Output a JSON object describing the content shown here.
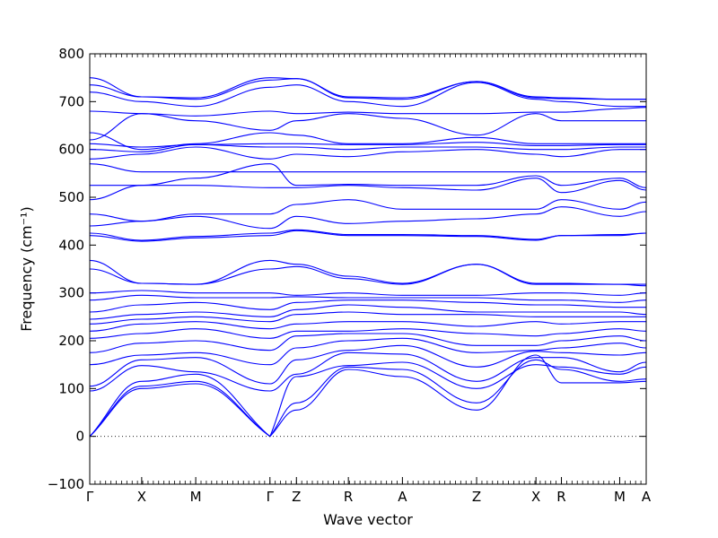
{
  "chart_data": {
    "type": "line",
    "title": "",
    "xlabel": "Wave vector",
    "ylabel": "Frequency (cm⁻¹)",
    "ylim": [
      -100,
      800
    ],
    "yticks": [
      -100,
      0,
      100,
      200,
      300,
      400,
      500,
      600,
      700,
      800
    ],
    "ytick_labels": [
      "−100",
      "0",
      "100",
      "200",
      "300",
      "400",
      "500",
      "600",
      "700",
      "800"
    ],
    "xlim": [
      0,
      10.5
    ],
    "high_symmetry_points": [
      {
        "label": "Γ",
        "x": 0
      },
      {
        "label": "X",
        "x": 0.98
      },
      {
        "label": "M",
        "x": 2.0
      },
      {
        "label": "Γ",
        "x": 3.4
      },
      {
        "label": "Z",
        "x": 3.9
      },
      {
        "label": "R",
        "x": 4.88
      },
      {
        "label": "A",
        "x": 5.9
      },
      {
        "label": "Z",
        "x": 7.3
      },
      {
        "label": "X",
        "x": 8.42
      },
      {
        "label": "R",
        "x": 8.9
      },
      {
        "label": "M",
        "x": 10.0
      },
      {
        "label": "A",
        "x": 10.5
      }
    ],
    "zero_line": {
      "y": 0,
      "style": "dotted"
    },
    "series_color": "#0000ff",
    "bands": [
      {
        "name": "",
        "x": [
          0,
          0.98,
          2.0,
          3.4,
          3.9,
          4.88,
          5.9,
          7.3,
          8.42,
          8.9,
          10.0,
          10.5
        ],
        "y": [
          0,
          100,
          110,
          0,
          55,
          140,
          125,
          55,
          170,
          112,
          112,
          115
        ]
      },
      {
        "name": "",
        "x": [
          0,
          0.98,
          2.0,
          3.4,
          3.9,
          4.88,
          5.9,
          7.3,
          8.42,
          8.9,
          10.0,
          10.5
        ],
        "y": [
          0,
          105,
          115,
          0,
          70,
          145,
          140,
          70,
          160,
          140,
          115,
          120
        ]
      },
      {
        "name": "",
        "x": [
          0,
          0.98,
          2.0,
          3.4,
          3.9,
          4.88,
          5.9,
          7.3,
          8.42,
          8.9,
          10.0,
          10.5
        ],
        "y": [
          0,
          115,
          130,
          0,
          125,
          148,
          155,
          100,
          150,
          145,
          130,
          145
        ]
      },
      {
        "name": "",
        "x": [
          0,
          0.98,
          2.0,
          3.4,
          3.9,
          4.88,
          5.9,
          7.3,
          8.42,
          8.9,
          10.0,
          10.5
        ],
        "y": [
          95,
          148,
          135,
          95,
          130,
          175,
          172,
          115,
          165,
          165,
          135,
          155
        ]
      },
      {
        "name": "",
        "x": [
          0,
          0.98,
          2.0,
          3.4,
          3.9,
          4.88,
          5.9,
          7.3,
          8.42,
          8.9,
          10.0,
          10.5
        ],
        "y": [
          105,
          160,
          165,
          110,
          160,
          180,
          190,
          145,
          178,
          175,
          170,
          175
        ]
      },
      {
        "name": "",
        "x": [
          0,
          0.98,
          2.0,
          3.4,
          3.9,
          4.88,
          5.9,
          7.3,
          8.42,
          8.9,
          10.0,
          10.5
        ],
        "y": [
          150,
          170,
          175,
          150,
          185,
          200,
          205,
          175,
          180,
          185,
          195,
          185
        ]
      },
      {
        "name": "",
        "x": [
          0,
          0.98,
          2.0,
          3.4,
          3.9,
          4.88,
          5.9,
          7.3,
          8.42,
          8.9,
          10.0,
          10.5
        ],
        "y": [
          175,
          195,
          200,
          180,
          210,
          215,
          215,
          190,
          190,
          200,
          210,
          200
        ]
      },
      {
        "name": "",
        "x": [
          0,
          0.98,
          2.0,
          3.4,
          3.9,
          4.88,
          5.9,
          7.3,
          8.42,
          8.9,
          10.0,
          10.5
        ],
        "y": [
          205,
          215,
          225,
          205,
          220,
          220,
          225,
          215,
          210,
          215,
          225,
          220
        ]
      },
      {
        "name": "",
        "x": [
          0,
          0.98,
          2.0,
          3.4,
          3.9,
          4.88,
          5.9,
          7.3,
          8.42,
          8.9,
          10.0,
          10.5
        ],
        "y": [
          220,
          235,
          240,
          225,
          235,
          240,
          240,
          230,
          240,
          235,
          240,
          240
        ]
      },
      {
        "name": "",
        "x": [
          0,
          0.98,
          2.0,
          3.4,
          3.9,
          4.88,
          5.9,
          7.3,
          8.42,
          8.9,
          10.0,
          10.5
        ],
        "y": [
          235,
          245,
          250,
          240,
          255,
          260,
          255,
          255,
          250,
          250,
          250,
          250
        ]
      },
      {
        "name": "",
        "x": [
          0,
          0.98,
          2.0,
          3.4,
          3.9,
          4.88,
          5.9,
          7.3,
          8.42,
          8.9,
          10.0,
          10.5
        ],
        "y": [
          245,
          255,
          260,
          250,
          265,
          275,
          270,
          260,
          260,
          260,
          260,
          255
        ]
      },
      {
        "name": "",
        "x": [
          0,
          0.98,
          2.0,
          3.4,
          3.9,
          4.88,
          5.9,
          7.3,
          8.42,
          8.9,
          10.0,
          10.5
        ],
        "y": [
          260,
          275,
          280,
          265,
          280,
          285,
          285,
          280,
          275,
          275,
          270,
          270
        ]
      },
      {
        "name": "",
        "x": [
          0,
          0.98,
          2.0,
          3.4,
          3.9,
          4.88,
          5.9,
          7.3,
          8.42,
          8.9,
          10.0,
          10.5
        ],
        "y": [
          285,
          295,
          290,
          290,
          292,
          290,
          290,
          290,
          285,
          285,
          280,
          285
        ]
      },
      {
        "name": "",
        "x": [
          0,
          0.98,
          2.0,
          3.4,
          3.9,
          4.88,
          5.9,
          7.3,
          8.42,
          8.9,
          10.0,
          10.5
        ],
        "y": [
          300,
          305,
          300,
          300,
          295,
          300,
          295,
          295,
          300,
          300,
          295,
          300
        ]
      },
      {
        "name": "",
        "x": [
          0,
          0.98,
          2.0,
          3.4,
          3.9,
          4.88,
          5.9,
          7.3,
          8.42,
          8.9,
          10.0,
          10.5
        ],
        "y": [
          350,
          320,
          318,
          350,
          355,
          330,
          318,
          360,
          318,
          318,
          318,
          315
        ]
      },
      {
        "name": "",
        "x": [
          0,
          0.98,
          2.0,
          3.4,
          3.9,
          4.88,
          5.9,
          7.3,
          8.42,
          8.9,
          10.0,
          10.5
        ],
        "y": [
          368,
          320,
          318,
          368,
          360,
          335,
          320,
          360,
          320,
          320,
          318,
          318
        ]
      },
      {
        "name": "",
        "x": [
          0,
          0.98,
          2.0,
          3.4,
          3.9,
          4.88,
          5.9,
          7.3,
          8.42,
          8.9,
          10.0,
          10.5
        ],
        "y": [
          420,
          408,
          415,
          420,
          430,
          420,
          420,
          418,
          410,
          420,
          420,
          425
        ]
      },
      {
        "name": "",
        "x": [
          0,
          0.98,
          2.0,
          3.4,
          3.9,
          4.88,
          5.9,
          7.3,
          8.42,
          8.9,
          10.0,
          10.5
        ],
        "y": [
          425,
          410,
          418,
          425,
          432,
          422,
          422,
          420,
          412,
          420,
          422,
          425
        ]
      },
      {
        "name": "",
        "x": [
          0,
          0.98,
          2.0,
          3.4,
          3.9,
          4.88,
          5.9,
          7.3,
          8.42,
          8.9,
          10.0,
          10.5
        ],
        "y": [
          440,
          450,
          460,
          435,
          460,
          445,
          450,
          455,
          465,
          480,
          460,
          470
        ]
      },
      {
        "name": "",
        "x": [
          0,
          0.98,
          2.0,
          3.4,
          3.9,
          4.88,
          5.9,
          7.3,
          8.42,
          8.9,
          10.0,
          10.5
        ],
        "y": [
          465,
          450,
          465,
          465,
          485,
          495,
          475,
          475,
          475,
          495,
          475,
          490
        ]
      },
      {
        "name": "",
        "x": [
          0,
          0.98,
          2.0,
          3.4,
          3.9,
          4.88,
          5.9,
          7.3,
          8.42,
          8.9,
          10.0,
          10.5
        ],
        "y": [
          495,
          525,
          525,
          520,
          520,
          525,
          520,
          515,
          540,
          510,
          535,
          515
        ]
      },
      {
        "name": "",
        "x": [
          0,
          0.98,
          2.0,
          3.4,
          3.9,
          4.88,
          5.9,
          7.3,
          8.42,
          8.9,
          10.0,
          10.5
        ],
        "y": [
          525,
          525,
          540,
          570,
          525,
          527,
          525,
          525,
          545,
          525,
          540,
          520
        ]
      },
      {
        "name": "",
        "x": [
          0,
          0.98,
          2.0,
          3.4,
          3.9,
          4.88,
          5.9,
          7.3,
          8.42,
          8.9,
          10.0,
          10.5
        ],
        "y": [
          570,
          553,
          553,
          553,
          553,
          553,
          553,
          553,
          553,
          553,
          553,
          553
        ]
      },
      {
        "name": "",
        "x": [
          0,
          0.98,
          2.0,
          3.4,
          3.9,
          4.88,
          5.9,
          7.3,
          8.42,
          8.9,
          10.0,
          10.5
        ],
        "y": [
          580,
          590,
          605,
          580,
          590,
          585,
          595,
          600,
          590,
          585,
          600,
          600
        ]
      },
      {
        "name": "",
        "x": [
          0,
          0.98,
          2.0,
          3.4,
          3.9,
          4.88,
          5.9,
          7.3,
          8.42,
          8.9,
          10.0,
          10.5
        ],
        "y": [
          600,
          595,
          610,
          605,
          605,
          600,
          605,
          605,
          600,
          600,
          605,
          605
        ]
      },
      {
        "name": "",
        "x": [
          0,
          0.98,
          2.0,
          3.4,
          3.9,
          4.88,
          5.9,
          7.3,
          8.42,
          8.9,
          10.0,
          10.5
        ],
        "y": [
          612,
          605,
          610,
          612,
          612,
          610,
          610,
          615,
          608,
          608,
          610,
          610
        ]
      },
      {
        "name": "",
        "x": [
          0,
          0.98,
          2.0,
          3.4,
          3.9,
          4.88,
          5.9,
          7.3,
          8.42,
          8.9,
          10.0,
          10.5
        ],
        "y": [
          635,
          600,
          612,
          635,
          630,
          612,
          612,
          625,
          612,
          612,
          612,
          612
        ]
      },
      {
        "name": "",
        "x": [
          0,
          0.98,
          2.0,
          3.4,
          3.9,
          4.88,
          5.9,
          7.3,
          8.42,
          8.9,
          10.0,
          10.5
        ],
        "y": [
          620,
          675,
          660,
          640,
          660,
          675,
          665,
          630,
          675,
          660,
          660,
          660
        ]
      },
      {
        "name": "",
        "x": [
          0,
          0.98,
          2.0,
          3.4,
          3.9,
          4.88,
          5.9,
          7.3,
          8.42,
          8.9,
          10.0,
          10.5
        ],
        "y": [
          680,
          675,
          670,
          680,
          675,
          678,
          675,
          675,
          678,
          678,
          685,
          688
        ]
      },
      {
        "name": "",
        "x": [
          0,
          0.98,
          2.0,
          3.4,
          3.9,
          4.88,
          5.9,
          7.3,
          8.42,
          8.9,
          10.0,
          10.5
        ],
        "y": [
          720,
          700,
          690,
          730,
          735,
          700,
          690,
          740,
          705,
          700,
          690,
          690
        ]
      },
      {
        "name": "",
        "x": [
          0,
          0.98,
          2.0,
          3.4,
          3.9,
          4.88,
          5.9,
          7.3,
          8.42,
          8.9,
          10.0,
          10.5
        ],
        "y": [
          735,
          710,
          705,
          745,
          748,
          710,
          708,
          742,
          710,
          708,
          705,
          705
        ]
      },
      {
        "name": "",
        "x": [
          0,
          0.98,
          2.0,
          3.4,
          3.9,
          4.88,
          5.9,
          7.3,
          8.42,
          8.9,
          10.0,
          10.5
        ],
        "y": [
          750,
          710,
          708,
          750,
          748,
          708,
          705,
          742,
          708,
          706,
          705,
          705
        ]
      }
    ]
  }
}
